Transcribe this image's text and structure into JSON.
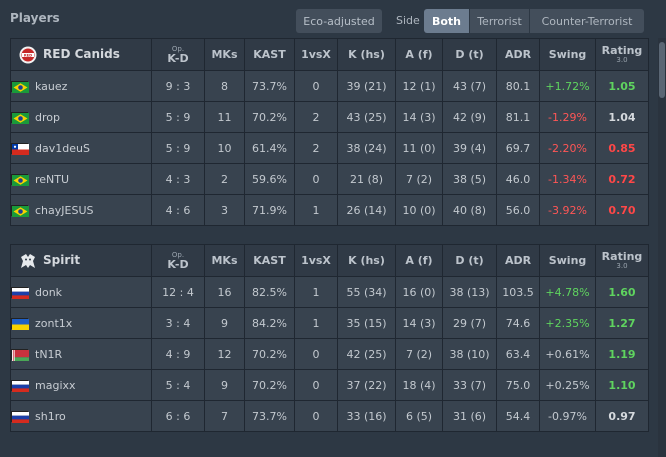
{
  "header": {
    "title": "Players",
    "eco_label": "Eco-adjusted",
    "side_label": "Side",
    "side_options": [
      "Both",
      "Terrorist",
      "Counter-Terrorist"
    ],
    "side_selected": "Both"
  },
  "columns": {
    "kd_sup": "Op.",
    "kd": "K-D",
    "mks": "MKs",
    "kast": "KAST",
    "clutch": "1vsX",
    "k": "K (hs)",
    "a": "A (f)",
    "d": "D (t)",
    "adr": "ADR",
    "swing": "Swing",
    "rating": "Rating",
    "rating_sub": "3.0"
  },
  "teams": [
    {
      "name": "RED Canids",
      "logo": "red-canids-logo",
      "players": [
        {
          "name": "kauez",
          "flag": "brazil",
          "kd": "9 : 3",
          "mks": "8",
          "kast": "73.7%",
          "clutch": "0",
          "k": "39 (21)",
          "a": "12 (1)",
          "d": "43 (7)",
          "adr": "80.1",
          "swing": "+1.72%",
          "swing_sign": "pos",
          "rating": "1.05",
          "rating_tier": "high"
        },
        {
          "name": "drop",
          "flag": "brazil",
          "kd": "5 : 9",
          "mks": "11",
          "kast": "70.2%",
          "clutch": "2",
          "k": "43 (25)",
          "a": "14 (3)",
          "d": "42 (9)",
          "adr": "81.1",
          "swing": "-1.29%",
          "swing_sign": "neg",
          "rating": "1.04",
          "rating_tier": "mid"
        },
        {
          "name": "dav1deuS",
          "flag": "chile",
          "kd": "5 : 9",
          "mks": "10",
          "kast": "61.4%",
          "clutch": "2",
          "k": "38 (24)",
          "a": "11 (0)",
          "d": "39 (4)",
          "adr": "69.7",
          "swing": "-2.20%",
          "swing_sign": "neg",
          "rating": "0.85",
          "rating_tier": "low"
        },
        {
          "name": "reNTU",
          "flag": "brazil",
          "kd": "4 : 3",
          "mks": "2",
          "kast": "59.6%",
          "clutch": "0",
          "k": "21 (8)",
          "a": "7 (2)",
          "d": "38 (5)",
          "adr": "46.0",
          "swing": "-1.34%",
          "swing_sign": "neg",
          "rating": "0.72",
          "rating_tier": "low"
        },
        {
          "name": "chayJESUS",
          "flag": "brazil",
          "kd": "4 : 6",
          "mks": "3",
          "kast": "71.9%",
          "clutch": "1",
          "k": "26 (14)",
          "a": "10 (0)",
          "d": "40 (8)",
          "adr": "56.0",
          "swing": "-3.92%",
          "swing_sign": "neg",
          "rating": "0.70",
          "rating_tier": "low"
        }
      ]
    },
    {
      "name": "Spirit",
      "logo": "spirit-logo",
      "players": [
        {
          "name": "donk",
          "flag": "russia",
          "kd": "12 : 4",
          "mks": "16",
          "kast": "82.5%",
          "clutch": "1",
          "k": "55 (34)",
          "a": "16 (0)",
          "d": "38 (13)",
          "adr": "103.5",
          "swing": "+4.78%",
          "swing_sign": "pos",
          "rating": "1.60",
          "rating_tier": "high"
        },
        {
          "name": "zont1x",
          "flag": "ukraine",
          "kd": "3 : 4",
          "mks": "9",
          "kast": "84.2%",
          "clutch": "1",
          "k": "35 (15)",
          "a": "14 (3)",
          "d": "29 (7)",
          "adr": "74.6",
          "swing": "+2.35%",
          "swing_sign": "pos",
          "rating": "1.27",
          "rating_tier": "high"
        },
        {
          "name": "tN1R",
          "flag": "belarus",
          "kd": "4 : 9",
          "mks": "12",
          "kast": "70.2%",
          "clutch": "0",
          "k": "42 (25)",
          "a": "7 (2)",
          "d": "38 (10)",
          "adr": "63.4",
          "swing": "+0.61%",
          "swing_sign": "neutral",
          "rating": "1.19",
          "rating_tier": "high"
        },
        {
          "name": "magixx",
          "flag": "russia",
          "kd": "5 : 4",
          "mks": "9",
          "kast": "70.2%",
          "clutch": "0",
          "k": "37 (22)",
          "a": "18 (4)",
          "d": "33 (7)",
          "adr": "75.0",
          "swing": "+0.25%",
          "swing_sign": "neutral",
          "rating": "1.10",
          "rating_tier": "high"
        },
        {
          "name": "sh1ro",
          "flag": "russia",
          "kd": "6 : 6",
          "mks": "7",
          "kast": "73.7%",
          "clutch": "0",
          "k": "33 (16)",
          "a": "6 (5)",
          "d": "31 (6)",
          "adr": "54.4",
          "swing": "-0.97%",
          "swing_sign": "neutral",
          "rating": "0.97",
          "rating_tier": "mid"
        }
      ]
    }
  ]
}
